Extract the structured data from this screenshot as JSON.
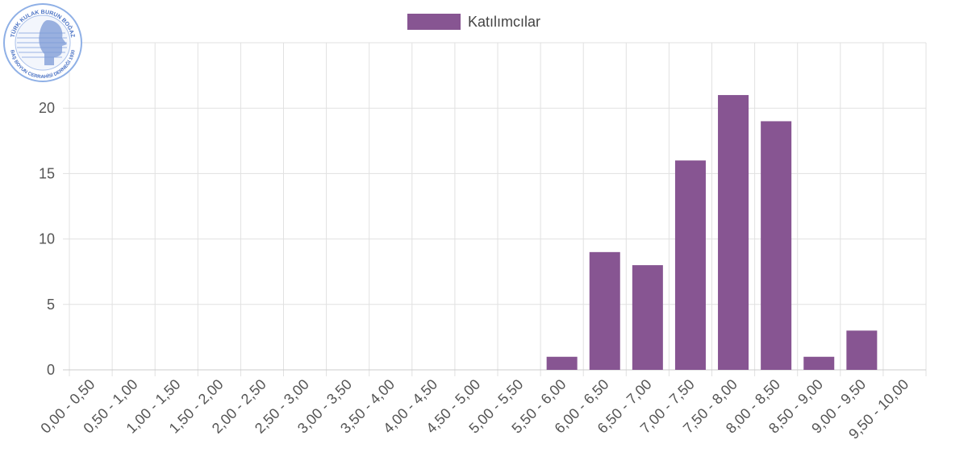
{
  "logo": {
    "top_text": "TÜRK KULAK BURUN BOĞAZ",
    "bottom_text": "BAŞ BOYUN CERRAHİSİ DERNEĞİ 1930"
  },
  "colors": {
    "bar": "#875592",
    "grid": "#e1e1e1",
    "axis": "#cccccc"
  },
  "chart_data": {
    "type": "bar",
    "categories": [
      "0,00 - 0,50",
      "0,50 - 1,00",
      "1,00 - 1,50",
      "1,50 - 2,00",
      "2,00 - 2,50",
      "2,50 - 3,00",
      "3,00 - 3,50",
      "3,50 - 4,00",
      "4,00 - 4,50",
      "4,50 - 5,00",
      "5,00 - 5,50",
      "5,50 - 6,00",
      "6,00 - 6,50",
      "6,50 - 7,00",
      "7,00 - 7,50",
      "7,50 - 8,00",
      "8,00 - 8,50",
      "8,50 - 9,00",
      "9,00 - 9,50",
      "9,50 - 10,00"
    ],
    "series": [
      {
        "name": "Katılımcılar",
        "values": [
          0,
          0,
          0,
          0,
          0,
          0,
          0,
          0,
          0,
          0,
          0,
          1,
          9,
          8,
          16,
          21,
          19,
          1,
          3,
          0
        ]
      }
    ],
    "ylim": [
      0,
      25
    ],
    "yticks": [
      0,
      5,
      10,
      15,
      20,
      25
    ],
    "grid": true,
    "legend": "top-center"
  }
}
